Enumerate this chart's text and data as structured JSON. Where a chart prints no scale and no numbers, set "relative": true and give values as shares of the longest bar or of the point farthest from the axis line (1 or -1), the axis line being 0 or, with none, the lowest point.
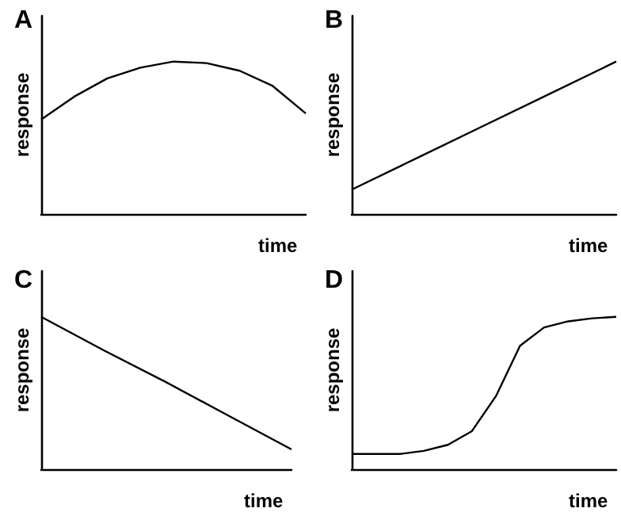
{
  "chart_data": [
    {
      "type": "line",
      "title": "A",
      "xlabel": "time",
      "ylabel": "response",
      "relative": true,
      "color": "#000000",
      "categories": [
        null,
        null,
        null,
        null,
        null,
        null,
        null,
        null,
        null
      ],
      "values": [
        0.62,
        0.77,
        0.89,
        0.96,
        1,
        0.99,
        0.94,
        0.84,
        0.66
      ]
    },
    {
      "type": "line",
      "title": "B",
      "xlabel": "time",
      "ylabel": "response",
      "relative": true,
      "color": "#000000",
      "categories": [
        null,
        null,
        null,
        null,
        null
      ],
      "values": [
        0.16,
        0.37,
        0.58,
        0.79,
        1
      ]
    },
    {
      "type": "line",
      "title": "C",
      "xlabel": "time",
      "ylabel": "response",
      "relative": true,
      "color": "#000000",
      "categories": [
        null,
        null,
        null,
        null,
        null
      ],
      "values": [
        1,
        0.78,
        0.57,
        0.35,
        0.13
      ]
    },
    {
      "type": "line",
      "title": "D",
      "xlabel": "time",
      "ylabel": "response",
      "relative": true,
      "color": "#000000",
      "categories": [
        null,
        null,
        null,
        null,
        null,
        null,
        null,
        null,
        null,
        null,
        null,
        null
      ],
      "values": [
        0.1,
        0.1,
        0.1,
        0.12,
        0.16,
        0.25,
        0.48,
        0.81,
        0.93,
        0.97,
        0.99,
        1
      ]
    }
  ]
}
